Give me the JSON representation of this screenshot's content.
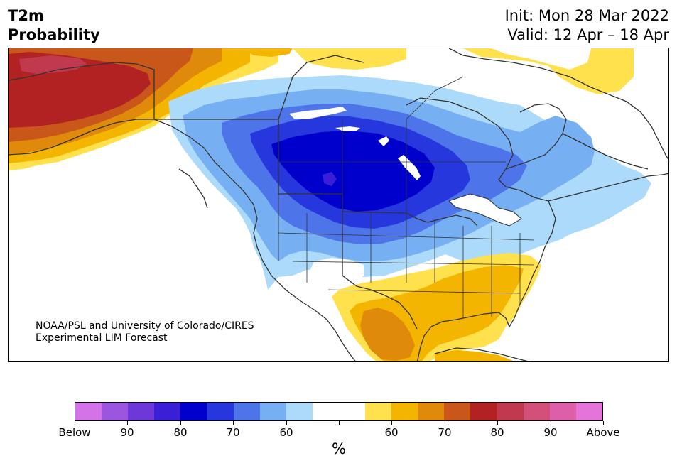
{
  "header": {
    "title_line1": "T2m",
    "title_line2": "Probability",
    "init_text": "Init: Mon 28 Mar 2022",
    "valid_text": "Valid: 12 Apr – 18 Apr"
  },
  "map": {
    "credit_line1": "NOAA/PSL and University of Colorado/CIRES",
    "credit_line2": "Experimental LIM Forecast",
    "colors": {
      "land_outline": "#333333",
      "lakes": "#ffffff"
    }
  },
  "colorbar": {
    "unit": "%",
    "bins": [
      {
        "color": "#d473e8",
        "side": "below"
      },
      {
        "color": "#9b55de",
        "side": "below"
      },
      {
        "color": "#6e38d8",
        "side": "below"
      },
      {
        "color": "#3b1fd6",
        "side": "below"
      },
      {
        "color": "#0000cc",
        "side": "below"
      },
      {
        "color": "#2638dd",
        "side": "below"
      },
      {
        "color": "#4e74ea",
        "side": "below"
      },
      {
        "color": "#76b0f2",
        "side": "below"
      },
      {
        "color": "#acdafa",
        "side": "below"
      },
      {
        "color": "#ffffff",
        "side": "neutral"
      },
      {
        "color": "#ffffff",
        "side": "neutral"
      },
      {
        "color": "#ffe14d",
        "side": "above"
      },
      {
        "color": "#f3b500",
        "side": "above"
      },
      {
        "color": "#df8a0a",
        "side": "above"
      },
      {
        "color": "#c85719",
        "side": "above"
      },
      {
        "color": "#b22222",
        "side": "above"
      },
      {
        "color": "#c0394f",
        "side": "above"
      },
      {
        "color": "#d25079",
        "side": "above"
      },
      {
        "color": "#dd5faa",
        "side": "above"
      },
      {
        "color": "#e574d8",
        "side": "above"
      }
    ],
    "ticks": [
      "Below",
      "90",
      "80",
      "70",
      "60",
      "",
      "60",
      "70",
      "80",
      "90",
      "Above"
    ]
  }
}
